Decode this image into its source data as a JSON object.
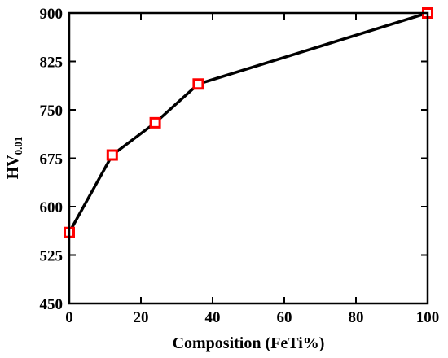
{
  "chart_data": {
    "type": "line",
    "xlabel": "Composition (FeTi%)",
    "ylabel": {
      "main": "HV",
      "subscript": "0.01"
    },
    "xlim": [
      0,
      100
    ],
    "ylim": [
      450,
      900
    ],
    "xticks": [
      0,
      20,
      40,
      60,
      80,
      100
    ],
    "yticks": [
      450,
      525,
      600,
      675,
      750,
      825,
      900
    ],
    "grid": false,
    "series": [
      {
        "x": [
          0,
          12,
          24,
          36,
          100
        ],
        "y": [
          560,
          680,
          730,
          790,
          900
        ],
        "line_color": "#000000",
        "marker": "square-open",
        "marker_color": "#ff0000"
      }
    ]
  }
}
